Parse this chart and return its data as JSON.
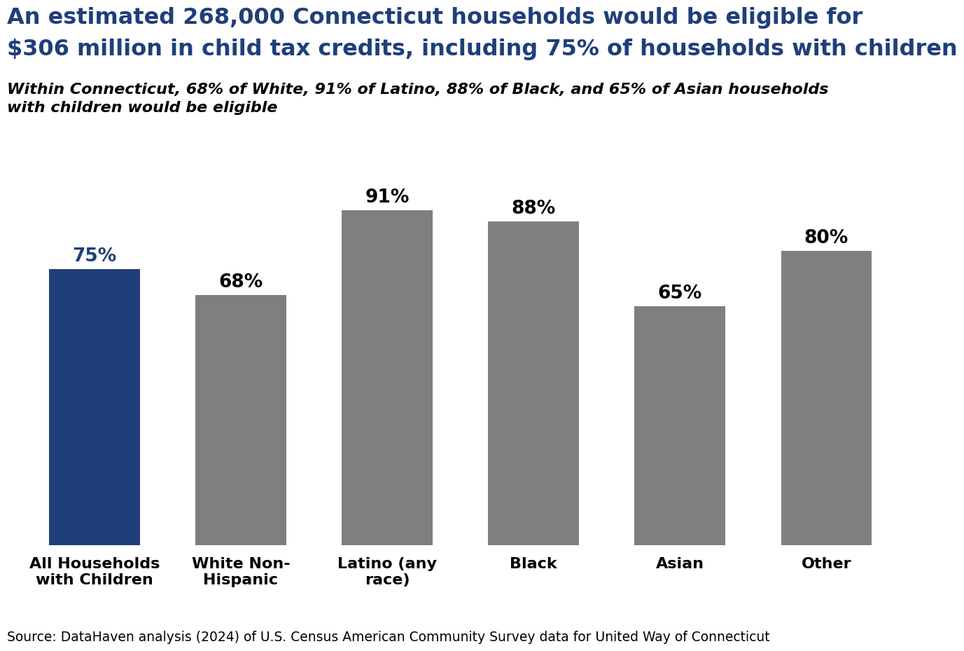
{
  "title_line1": "An estimated 268,000 Connecticut households would be eligible for",
  "title_line2": "$306 million in child tax credits, including 75% of households with children",
  "subtitle": "Within Connecticut, 68% of White, 91% of Latino, 88% of Black, and 65% of Asian households\nwith children would be eligible",
  "categories": [
    "All Households\nwith Children",
    "White Non-\nHispanic",
    "Latino (any\nrace)",
    "Black",
    "Asian",
    "Other"
  ],
  "values": [
    75,
    68,
    91,
    88,
    65,
    80
  ],
  "bar_colors": [
    "#1F3F7A",
    "#7F7F7F",
    "#7F7F7F",
    "#7F7F7F",
    "#7F7F7F",
    "#7F7F7F"
  ],
  "label_colors": [
    "#1F3F7A",
    "#000000",
    "#000000",
    "#000000",
    "#000000",
    "#000000"
  ],
  "ylim": [
    0,
    100
  ],
  "source": "Source: DataHaven analysis (2024) of U.S. Census American Community Survey data for United Way of Connecticut",
  "background_color": "#FFFFFF",
  "title_color": "#1F3F7A",
  "subtitle_color": "#000000",
  "title_fontsize": 23,
  "subtitle_fontsize": 16,
  "label_fontsize": 19,
  "tick_label_fontsize": 16,
  "source_fontsize": 13.5,
  "bar_width": 0.62
}
